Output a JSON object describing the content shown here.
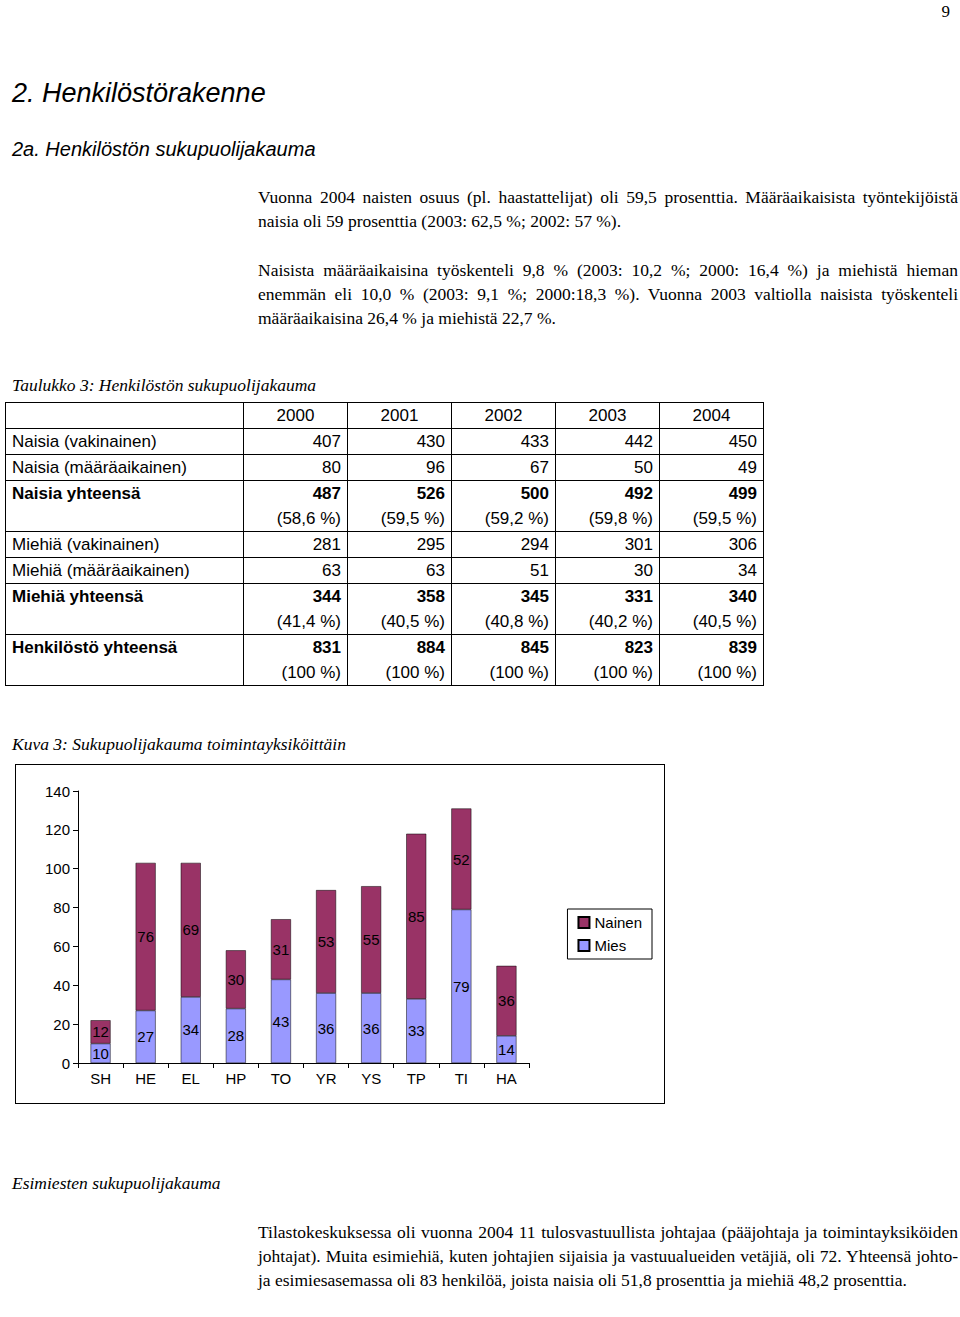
{
  "page_number": "9",
  "heading": "2. Henkilöstörakenne",
  "subheading": "2a. Henkilöstön sukupuolijakauma",
  "paragraphs": [
    "Vuonna 2004 naisten osuus (pl. haastattelijat) oli 59,5 prosenttia. Määräaikaisista työntekijöistä naisia oli 59 prosenttia (2003: 62,5 %; 2002: 57 %).",
    "Naisista määräaikaisina työskenteli 9,8 % (2003: 10,2 %; 2000: 16,4 %) ja miehistä hieman enemmän eli 10,0 % (2003: 9,1 %; 2000:18,3 %). Vuonna 2003 valtiolla naisista työskenteli määräaikaisina 26,4 % ja miehistä 22,7 %."
  ],
  "table": {
    "caption": "Taulukko 3: Henkilöstön sukupuolijakauma",
    "columns": [
      "2000",
      "2001",
      "2002",
      "2003",
      "2004"
    ],
    "rows": [
      {
        "label": "Naisia (vakinainen)",
        "cells": [
          "407",
          "430",
          "433",
          "442",
          "450"
        ]
      },
      {
        "label": "Naisia (määräaikainen)",
        "cells": [
          "80",
          "96",
          "67",
          "50",
          "49"
        ]
      },
      {
        "label": "Naisia yhteensä",
        "cells": [
          "487",
          "526",
          "500",
          "492",
          "499"
        ],
        "percentages": [
          "(58,6 %)",
          "(59,5 %)",
          "(59,2 %)",
          "(59,8 %)",
          "(59,5 %)"
        ]
      },
      {
        "label": "Miehiä (vakinainen)",
        "cells": [
          "281",
          "295",
          "294",
          "301",
          "306"
        ]
      },
      {
        "label": "Miehiä (määräaikainen)",
        "cells": [
          "63",
          "63",
          "51",
          "30",
          "34"
        ]
      },
      {
        "label": "Miehiä yhteensä",
        "cells": [
          "344",
          "358",
          "345",
          "331",
          "340"
        ],
        "percentages": [
          "(41,4 %)",
          "(40,5 %)",
          "(40,8 %)",
          "(40,2 %)",
          "(40,5 %)"
        ]
      },
      {
        "label": "Henkilöstö yhteensä",
        "cells": [
          "831",
          "884",
          "845",
          "823",
          "839"
        ],
        "percentages": [
          "(100 %)",
          "(100 %)",
          "(100 %)",
          "(100 %)",
          "(100 %)"
        ]
      }
    ]
  },
  "chart_data": {
    "type": "bar",
    "title": "Kuva 3: Sukupuolijakauma toimintayksiköittäin",
    "categories": [
      "SH",
      "HE",
      "EL",
      "HP",
      "TO",
      "YR",
      "YS",
      "TP",
      "TI",
      "HA"
    ],
    "series": [
      {
        "name": "Mies",
        "color": "#9999ff",
        "values": [
          10,
          27,
          34,
          28,
          43,
          36,
          36,
          33,
          79,
          14
        ]
      },
      {
        "name": "Nainen",
        "color": "#993366",
        "values": [
          12,
          76,
          69,
          30,
          31,
          53,
          55,
          85,
          52,
          36
        ]
      }
    ],
    "stacked": true,
    "data_labels": true,
    "ylim": [
      0,
      140
    ],
    "yticks": [
      0,
      20,
      40,
      60,
      80,
      100,
      120,
      140
    ],
    "grid": false,
    "legend": "right"
  },
  "section2": {
    "title": "Esimiesten sukupuolijakauma",
    "paragraph": "Tilastokeskuksessa oli vuonna 2004 11 tulosvastuullista johtajaa (pääjohtaja ja toimintayksiköiden johtajat). Muita esimiehiä, kuten johtajien sijaisia ja vastuualueiden vetäjiä, oli 72. Yhteensä johto- ja esimiesasemassa oli 83 henkilöä, joista naisia oli 51,8 prosenttia ja miehiä 48,2 prosenttia."
  }
}
